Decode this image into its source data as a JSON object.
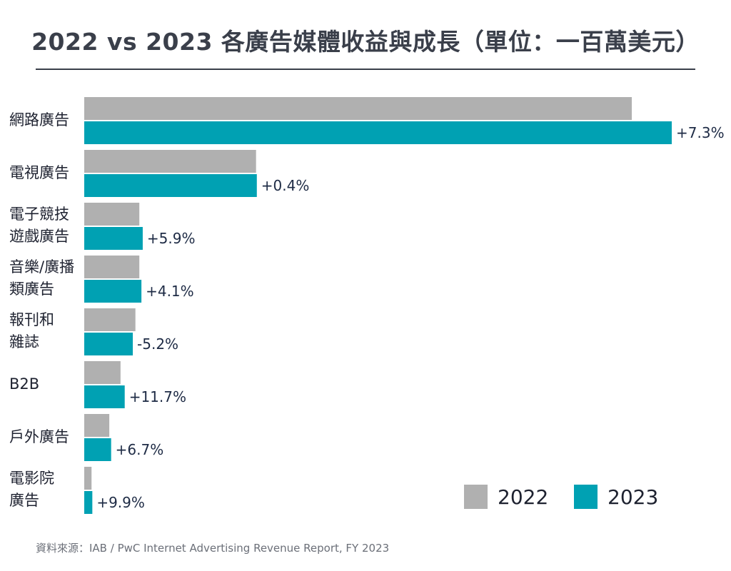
{
  "title": "2022 vs 2023 各廣告媒體收益與成長（單位：一百萬美元）",
  "source": "資料來源：IAB / PwC Internet Advertising Revenue Report, FY 2023",
  "colors": {
    "y2022": "#b0b0b0",
    "y2023": "#00a1b3",
    "title": "#3a3f4a"
  },
  "chart_data": {
    "type": "bar",
    "orientation": "horizontal",
    "title": "2022 vs 2023 各廣告媒體收益與成長（單位：一百萬美元）",
    "categories": [
      [
        "網路廣告"
      ],
      [
        "電視廣告"
      ],
      [
        "電子競技",
        "遊戲廣告"
      ],
      [
        "音樂/廣播",
        "類廣告"
      ],
      [
        "報刊和",
        "雜誌"
      ],
      [
        "B2B"
      ],
      [
        "戶外廣告"
      ],
      [
        "電影院",
        "廣告"
      ]
    ],
    "series": [
      {
        "name": "2022",
        "color": "#b0b0b0",
        "values": [
          209700,
          65800,
          21100,
          21100,
          19600,
          13900,
          9600,
          2800
        ]
      },
      {
        "name": "2023",
        "color": "#00a1b3",
        "values": [
          225000,
          66100,
          22400,
          21900,
          18600,
          15500,
          10300,
          3100
        ]
      }
    ],
    "growth_labels": [
      "+7.3%",
      "+0.4%",
      "+5.9%",
      "+4.1%",
      "-5.2%",
      "+11.7%",
      "+6.7%",
      "+9.9%"
    ],
    "xlim": [
      0,
      225000
    ],
    "legend": {
      "position": "bottom-right",
      "entries": [
        "2022",
        "2023"
      ]
    },
    "grid": false
  }
}
